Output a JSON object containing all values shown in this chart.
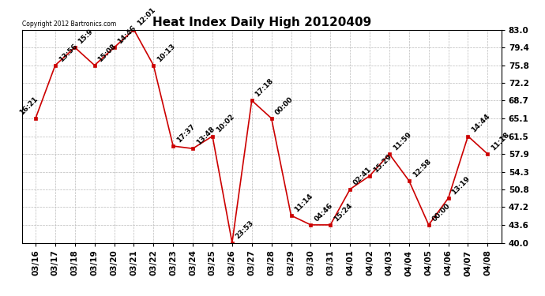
{
  "title": "Heat Index Daily High 20120409",
  "copyright": "Copyright 2012 Bartronics.com",
  "x_labels": [
    "03/16",
    "03/17",
    "03/18",
    "03/19",
    "03/20",
    "03/21",
    "03/22",
    "03/23",
    "03/24",
    "03/25",
    "03/26",
    "03/27",
    "03/28",
    "03/29",
    "03/30",
    "03/31",
    "04/01",
    "04/02",
    "04/03",
    "04/04",
    "04/05",
    "04/06",
    "04/07",
    "04/08"
  ],
  "y_values": [
    65.1,
    75.8,
    79.4,
    75.8,
    79.4,
    83.0,
    75.8,
    59.5,
    59.0,
    61.5,
    40.0,
    68.7,
    65.1,
    45.5,
    43.6,
    43.6,
    50.8,
    53.5,
    57.9,
    52.5,
    43.6,
    49.0,
    61.5,
    57.9
  ],
  "point_labels": [
    "16:21",
    "13:56",
    "15:9",
    "15:08",
    "14:46",
    "12:01",
    "10:13",
    "17:37",
    "13:48",
    "10:02",
    "23:53",
    "17:18",
    "00:00",
    "11:14",
    "04:46",
    "15:24",
    "02:41",
    "15:29",
    "11:59",
    "12:58",
    "00:00",
    "13:19",
    "14:44",
    "11:18"
  ],
  "ylim": [
    40.0,
    83.0
  ],
  "yticks": [
    40.0,
    43.6,
    47.2,
    50.8,
    54.3,
    57.9,
    61.5,
    65.1,
    68.7,
    72.2,
    75.8,
    79.4,
    83.0
  ],
  "line_color": "#cc0000",
  "marker_color": "#cc0000",
  "bg_color": "#ffffff",
  "grid_color": "#bbbbbb",
  "title_fontsize": 11,
  "label_fontsize": 6.5,
  "tick_fontsize": 7.5
}
